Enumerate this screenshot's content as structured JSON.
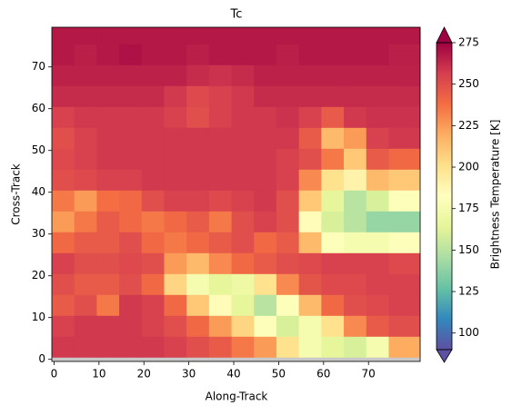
{
  "chart_data": {
    "type": "heatmap",
    "title": "Tc",
    "x_label": "Along-Track",
    "y_label": "Cross-Track",
    "colorbar_label": "Brightness Temperature [K]",
    "xlim": [
      -0.5,
      81.5
    ],
    "ylim": [
      -0.5,
      79.5
    ],
    "xticks": [
      0,
      10,
      20,
      30,
      40,
      50,
      60,
      70
    ],
    "yticks": [
      0,
      10,
      20,
      30,
      40,
      50,
      60,
      70
    ],
    "clim": [
      90,
      275
    ],
    "cticks": [
      100,
      125,
      150,
      175,
      200,
      225,
      250,
      275
    ],
    "extend": "both",
    "colormap": [
      "#5e4fa2",
      "#3288bd",
      "#66c2a5",
      "#abdda4",
      "#e6f598",
      "#ffffbf",
      "#fee08b",
      "#fdae61",
      "#f46d43",
      "#d53e4f",
      "#9e0142"
    ],
    "bad_color": "#c8c8c8",
    "x": [
      -0.5,
      4.5,
      9.5,
      14.5,
      19.5,
      24.5,
      29.5,
      34.5,
      39.5,
      44.5,
      49.5,
      54.5,
      59.5,
      64.5,
      69.5,
      74.5,
      81.5
    ],
    "y": [
      -0.5,
      0.5,
      5.5,
      10.5,
      15.5,
      20.5,
      25.5,
      30.5,
      35.5,
      40.5,
      45.5,
      50.5,
      55.5,
      60.5,
      65.5,
      70.5,
      75.5,
      79.5
    ],
    "z": [
      [
        null,
        null,
        null,
        null,
        null,
        null,
        null,
        null,
        null,
        null,
        null,
        null,
        null,
        null,
        null,
        null
      ],
      [
        258,
        258,
        258,
        258,
        258,
        255,
        250,
        245,
        235,
        225,
        200,
        175,
        165,
        160,
        175,
        220
      ],
      [
        255,
        258,
        258,
        258,
        255,
        250,
        240,
        225,
        205,
        180,
        160,
        175,
        200,
        230,
        245,
        250
      ],
      [
        245,
        250,
        235,
        258,
        255,
        240,
        210,
        185,
        165,
        150,
        180,
        215,
        240,
        250,
        252,
        255
      ],
      [
        250,
        245,
        245,
        250,
        240,
        205,
        175,
        165,
        170,
        200,
        230,
        248,
        252,
        252,
        255,
        255
      ],
      [
        255,
        250,
        250,
        252,
        250,
        225,
        215,
        230,
        240,
        245,
        250,
        252,
        255,
        255,
        255,
        252
      ],
      [
        240,
        245,
        245,
        250,
        240,
        235,
        240,
        245,
        250,
        240,
        245,
        215,
        180,
        175,
        175,
        180
      ],
      [
        225,
        235,
        245,
        240,
        235,
        240,
        245,
        235,
        250,
        255,
        250,
        185,
        160,
        150,
        140,
        140
      ],
      [
        235,
        225,
        238,
        240,
        250,
        255,
        255,
        252,
        255,
        258,
        250,
        210,
        165,
        150,
        160,
        180
      ],
      [
        250,
        252,
        255,
        255,
        258,
        258,
        258,
        258,
        258,
        258,
        255,
        230,
        200,
        190,
        215,
        210
      ],
      [
        252,
        255,
        258,
        258,
        258,
        258,
        258,
        258,
        258,
        258,
        255,
        250,
        235,
        210,
        245,
        240
      ],
      [
        250,
        255,
        258,
        258,
        258,
        258,
        258,
        258,
        258,
        258,
        258,
        245,
        215,
        225,
        255,
        258
      ],
      [
        255,
        258,
        258,
        258,
        258,
        255,
        250,
        255,
        258,
        258,
        260,
        255,
        245,
        258,
        260,
        260
      ],
      [
        262,
        262,
        262,
        262,
        262,
        258,
        252,
        255,
        258,
        262,
        262,
        262,
        262,
        262,
        262,
        262
      ],
      [
        265,
        265,
        265,
        265,
        265,
        265,
        262,
        260,
        262,
        265,
        265,
        265,
        265,
        265,
        265,
        265
      ],
      [
        268,
        266,
        268,
        270,
        268,
        268,
        266,
        268,
        268,
        268,
        266,
        268,
        268,
        268,
        268,
        266
      ],
      [
        268,
        268,
        268,
        268,
        268,
        268,
        268,
        268,
        268,
        268,
        268,
        268,
        268,
        268,
        268,
        268
      ]
    ]
  }
}
